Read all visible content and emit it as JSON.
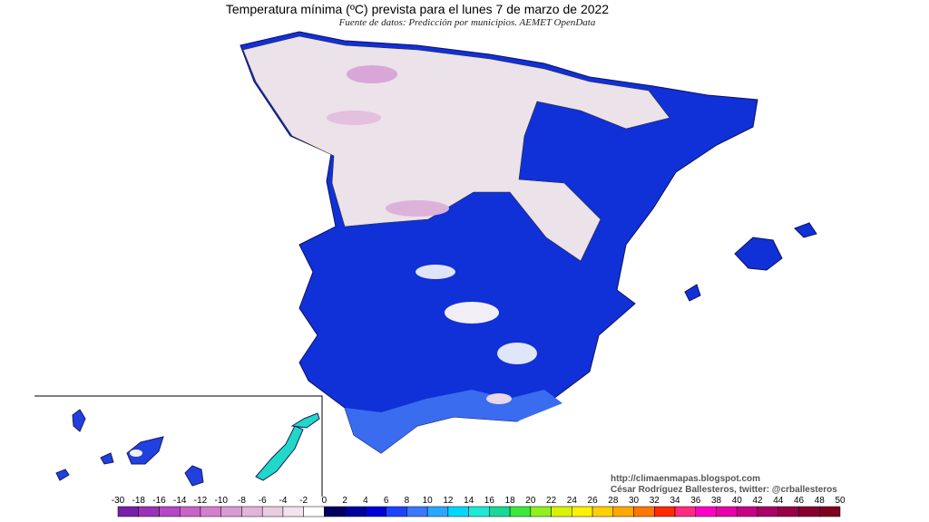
{
  "header": {
    "title": "Temperatura mínima (ºC) prevista para el lunes 7 de marzo de 2022",
    "subtitle": "Fuente de datos: Predicción por municipios. AEMET OpenData"
  },
  "credits": [
    "http://climaenmapas.blogspot.com",
    "César Rodríguez Ballesteros, twitter: @crballesteros"
  ],
  "legend": {
    "ticks": [
      -30,
      -18,
      -16,
      -14,
      -12,
      -10,
      -8,
      -6,
      -4,
      -2,
      0,
      2,
      4,
      6,
      8,
      10,
      12,
      14,
      16,
      18,
      20,
      22,
      24,
      26,
      28,
      30,
      32,
      34,
      36,
      38,
      40,
      42,
      44,
      46,
      48,
      50
    ],
    "colors": [
      "#7a1fa8",
      "#9a33b8",
      "#b548c4",
      "#c863c9",
      "#d47fce",
      "#dc9ad3",
      "#e3b4da",
      "#ebcde3",
      "#f3e3ee",
      "#ffffff",
      "#000060",
      "#00009a",
      "#0000d8",
      "#1c44ff",
      "#3a78ff",
      "#2aa8ff",
      "#00d8ff",
      "#1ee8d8",
      "#18d898",
      "#3ce83c",
      "#90f020",
      "#d8f400",
      "#fff000",
      "#ffd000",
      "#ffa800",
      "#ff7800",
      "#ff2a00",
      "#ff2a80",
      "#ff00c8",
      "#e800a8",
      "#c80088",
      "#a80068",
      "#980048",
      "#880030",
      "#800020"
    ]
  }
}
